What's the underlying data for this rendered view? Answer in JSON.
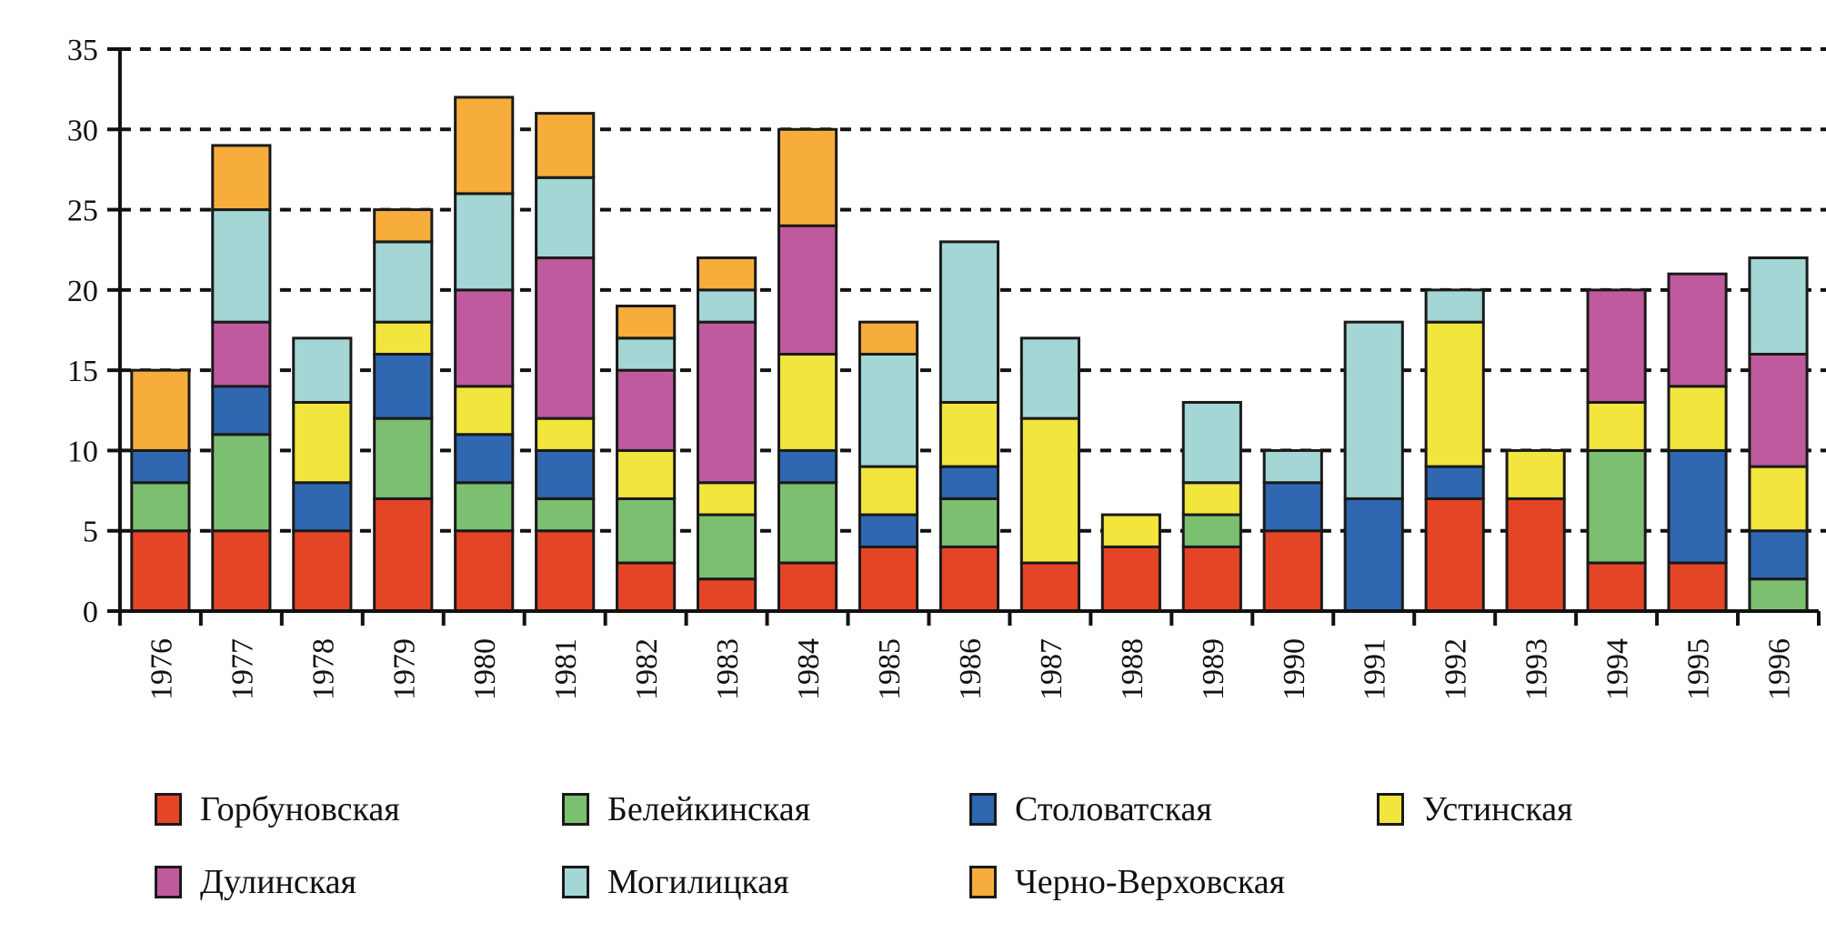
{
  "chart_data": {
    "type": "bar",
    "stacked": true,
    "title": "",
    "xlabel": "",
    "ylabel": "",
    "ylim": [
      0,
      35
    ],
    "yticks": [
      0,
      5,
      10,
      15,
      20,
      25,
      30,
      35
    ],
    "grid": "horizontal dashed",
    "legend_position": "bottom",
    "categories": [
      "1976",
      "1977",
      "1978",
      "1979",
      "1980",
      "1981",
      "1982",
      "1983",
      "1984",
      "1985",
      "1986",
      "1987",
      "1988",
      "1989",
      "1990",
      "1991",
      "1992",
      "1993",
      "1994",
      "1995",
      "1996"
    ],
    "series": [
      {
        "name": "Горбуновская",
        "color": "#e54527",
        "values": [
          5,
          5,
          5,
          7,
          5,
          5,
          3,
          2,
          3,
          4,
          4,
          3,
          4,
          4,
          5,
          0,
          7,
          7,
          3,
          3,
          0
        ]
      },
      {
        "name": "Белейкинская",
        "color": "#7dbf71",
        "values": [
          3,
          6,
          0,
          5,
          3,
          2,
          4,
          4,
          5,
          0,
          3,
          0,
          0,
          2,
          0,
          0,
          0,
          0,
          7,
          0,
          2
        ]
      },
      {
        "name": "Столоватская",
        "color": "#2f67b1",
        "values": [
          2,
          3,
          3,
          4,
          3,
          3,
          0,
          0,
          2,
          2,
          2,
          0,
          0,
          0,
          3,
          7,
          2,
          0,
          0,
          7,
          3
        ]
      },
      {
        "name": "Устинская",
        "color": "#f1e53e",
        "values": [
          0,
          0,
          5,
          2,
          3,
          2,
          3,
          2,
          6,
          3,
          4,
          9,
          2,
          2,
          0,
          0,
          9,
          3,
          3,
          4,
          4
        ]
      },
      {
        "name": "Дулинская",
        "color": "#c05a9e",
        "values": [
          0,
          4,
          0,
          0,
          6,
          10,
          5,
          10,
          8,
          0,
          0,
          0,
          0,
          0,
          0,
          0,
          0,
          0,
          7,
          7,
          7
        ]
      },
      {
        "name": "Могилицкая",
        "color": "#a3d6d4",
        "values": [
          0,
          7,
          4,
          5,
          6,
          5,
          2,
          2,
          0,
          7,
          10,
          5,
          0,
          5,
          2,
          11,
          2,
          0,
          0,
          0,
          6
        ]
      },
      {
        "name": "Черно-Верховская",
        "color": "#f6ad3b",
        "values": [
          5,
          4,
          0,
          2,
          6,
          4,
          2,
          2,
          6,
          2,
          0,
          0,
          0,
          0,
          0,
          0,
          0,
          0,
          0,
          0,
          0
        ]
      }
    ]
  }
}
